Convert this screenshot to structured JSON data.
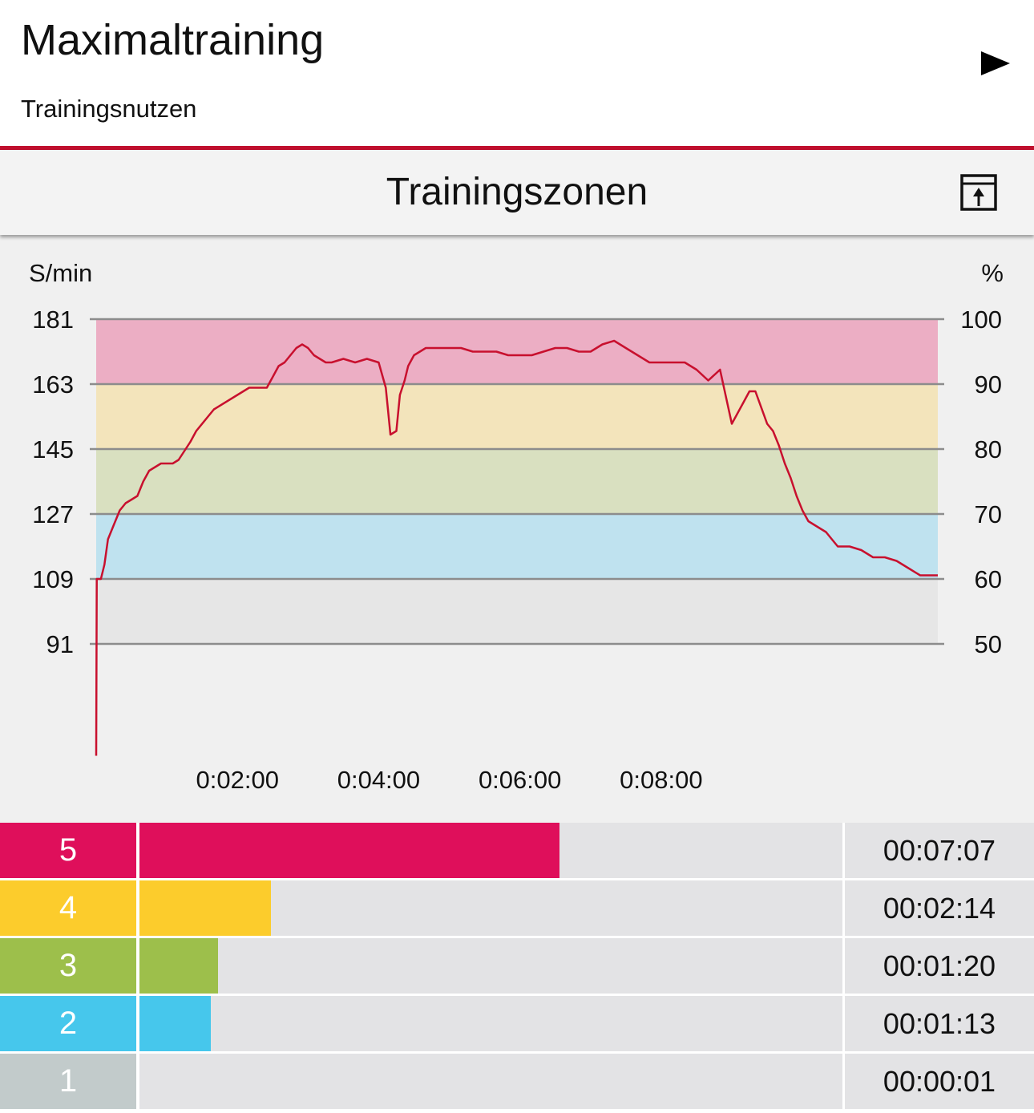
{
  "header": {
    "title": "Maximaltraining",
    "subtitle": "Trainingsnutzen",
    "play_icon": "play-icon"
  },
  "section": {
    "title": "Trainingszonen",
    "export_icon": "export-icon"
  },
  "chart_data": {
    "type": "line",
    "ylabel_left": "S/min",
    "ylabel_right": "%",
    "y_ticks_left": [
      "181",
      "163",
      "145",
      "127",
      "109",
      "91"
    ],
    "y_ticks_right": [
      "100",
      "90",
      "80",
      "70",
      "60",
      "50"
    ],
    "ylim": [
      91,
      181
    ],
    "x_ticks": [
      {
        "value": 120,
        "label": "0:02:00"
      },
      {
        "value": 240,
        "label": "0:04:00"
      },
      {
        "value": 360,
        "label": "0:06:00"
      },
      {
        "value": 480,
        "label": "0:08:00"
      }
    ],
    "xlim": [
      0,
      715
    ],
    "zone_bands": [
      {
        "zone": 5,
        "from": 163,
        "to": 181,
        "color": "#ecaec4"
      },
      {
        "zone": 4,
        "from": 145,
        "to": 163,
        "color": "#f3e4bb"
      },
      {
        "zone": 3,
        "from": 127,
        "to": 145,
        "color": "#d9e0c0"
      },
      {
        "zone": 2,
        "from": 109,
        "to": 127,
        "color": "#bfe2ef"
      },
      {
        "zone": 1,
        "from": 91,
        "to": 109,
        "color": "#e6e6e6"
      }
    ],
    "line_color": "#c8102e",
    "series": [
      {
        "x": [
          0,
          0.5,
          2,
          4,
          7,
          10,
          15,
          20,
          25,
          30,
          35,
          40,
          45,
          55,
          65,
          70,
          80,
          85,
          95,
          100,
          120,
          130,
          140,
          145,
          150,
          155,
          160,
          170,
          175,
          180,
          185,
          190,
          195,
          200,
          210,
          220,
          230,
          240,
          246,
          250,
          255,
          258,
          262,
          265,
          270,
          280,
          290,
          300,
          310,
          320,
          330,
          340,
          350,
          360,
          370,
          380,
          390,
          400,
          410,
          420,
          430,
          440,
          450,
          460,
          470,
          480,
          490,
          500,
          510,
          520,
          530,
          540,
          550,
          555,
          560,
          570,
          575,
          580,
          585,
          590,
          595,
          600,
          605,
          610,
          615,
          620,
          625,
          630,
          640,
          650,
          660,
          670,
          680,
          690,
          700,
          705,
          710,
          715
        ],
        "y": [
          60,
          109,
          109,
          109,
          113,
          120,
          124,
          128,
          130,
          131,
          132,
          136,
          139,
          141,
          141,
          142,
          147,
          150,
          154,
          156,
          160,
          162,
          162,
          162,
          165,
          168,
          169,
          173,
          174,
          173,
          171,
          170,
          169,
          169,
          170,
          169,
          170,
          169,
          162,
          149,
          150,
          160,
          164,
          168,
          171,
          173,
          173,
          173,
          173,
          172,
          172,
          172,
          171,
          171,
          171,
          172,
          173,
          173,
          172,
          172,
          174,
          175,
          173,
          171,
          169,
          169,
          169,
          169,
          167,
          164,
          167,
          152,
          158,
          161,
          161,
          152,
          150,
          146,
          141,
          137,
          132,
          128,
          125,
          124,
          123,
          122,
          120,
          118,
          118,
          117,
          115,
          115,
          114,
          112,
          110,
          110,
          110,
          110
        ]
      }
    ]
  },
  "zones": [
    {
      "label": "5",
      "time": "00:07:07",
      "fraction": 0.597,
      "color": "#df0f5b"
    },
    {
      "label": "4",
      "time": "00:02:14",
      "fraction": 0.187,
      "color": "#fccc2c"
    },
    {
      "label": "3",
      "time": "00:01:20",
      "fraction": 0.112,
      "color": "#9dbf4b"
    },
    {
      "label": "2",
      "time": "00:01:13",
      "fraction": 0.102,
      "color": "#46c7ec"
    },
    {
      "label": "1",
      "time": "00:00:01",
      "fraction": 0.0,
      "color": "#c2cbcb"
    }
  ]
}
